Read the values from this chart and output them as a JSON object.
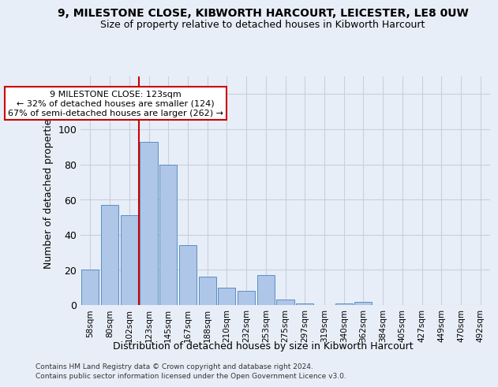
{
  "title": "9, MILESTONE CLOSE, KIBWORTH HARCOURT, LEICESTER, LE8 0UW",
  "subtitle": "Size of property relative to detached houses in Kibworth Harcourt",
  "xlabel": "Distribution of detached houses by size in Kibworth Harcourt",
  "ylabel": "Number of detached properties",
  "bin_labels": [
    "58sqm",
    "80sqm",
    "102sqm",
    "123sqm",
    "145sqm",
    "167sqm",
    "188sqm",
    "210sqm",
    "232sqm",
    "253sqm",
    "275sqm",
    "297sqm",
    "319sqm",
    "340sqm",
    "362sqm",
    "384sqm",
    "405sqm",
    "427sqm",
    "449sqm",
    "470sqm",
    "492sqm"
  ],
  "bar_values": [
    20,
    57,
    51,
    93,
    80,
    34,
    16,
    10,
    8,
    17,
    3,
    1,
    0,
    1,
    2,
    0,
    0,
    0,
    0,
    0,
    0
  ],
  "bar_color": "#aec6e8",
  "bar_edge_color": "#5a8fc3",
  "vline_index": 3,
  "vline_color": "#cc0000",
  "annotation_text": "9 MILESTONE CLOSE: 123sqm\n← 32% of detached houses are smaller (124)\n67% of semi-detached houses are larger (262) →",
  "ylim": [
    0,
    130
  ],
  "yticks": [
    0,
    20,
    40,
    60,
    80,
    100,
    120
  ],
  "grid_color": "#c8d0dc",
  "background_color": "#e8eef7",
  "footnote1": "Contains HM Land Registry data © Crown copyright and database right 2024.",
  "footnote2": "Contains public sector information licensed under the Open Government Licence v3.0."
}
